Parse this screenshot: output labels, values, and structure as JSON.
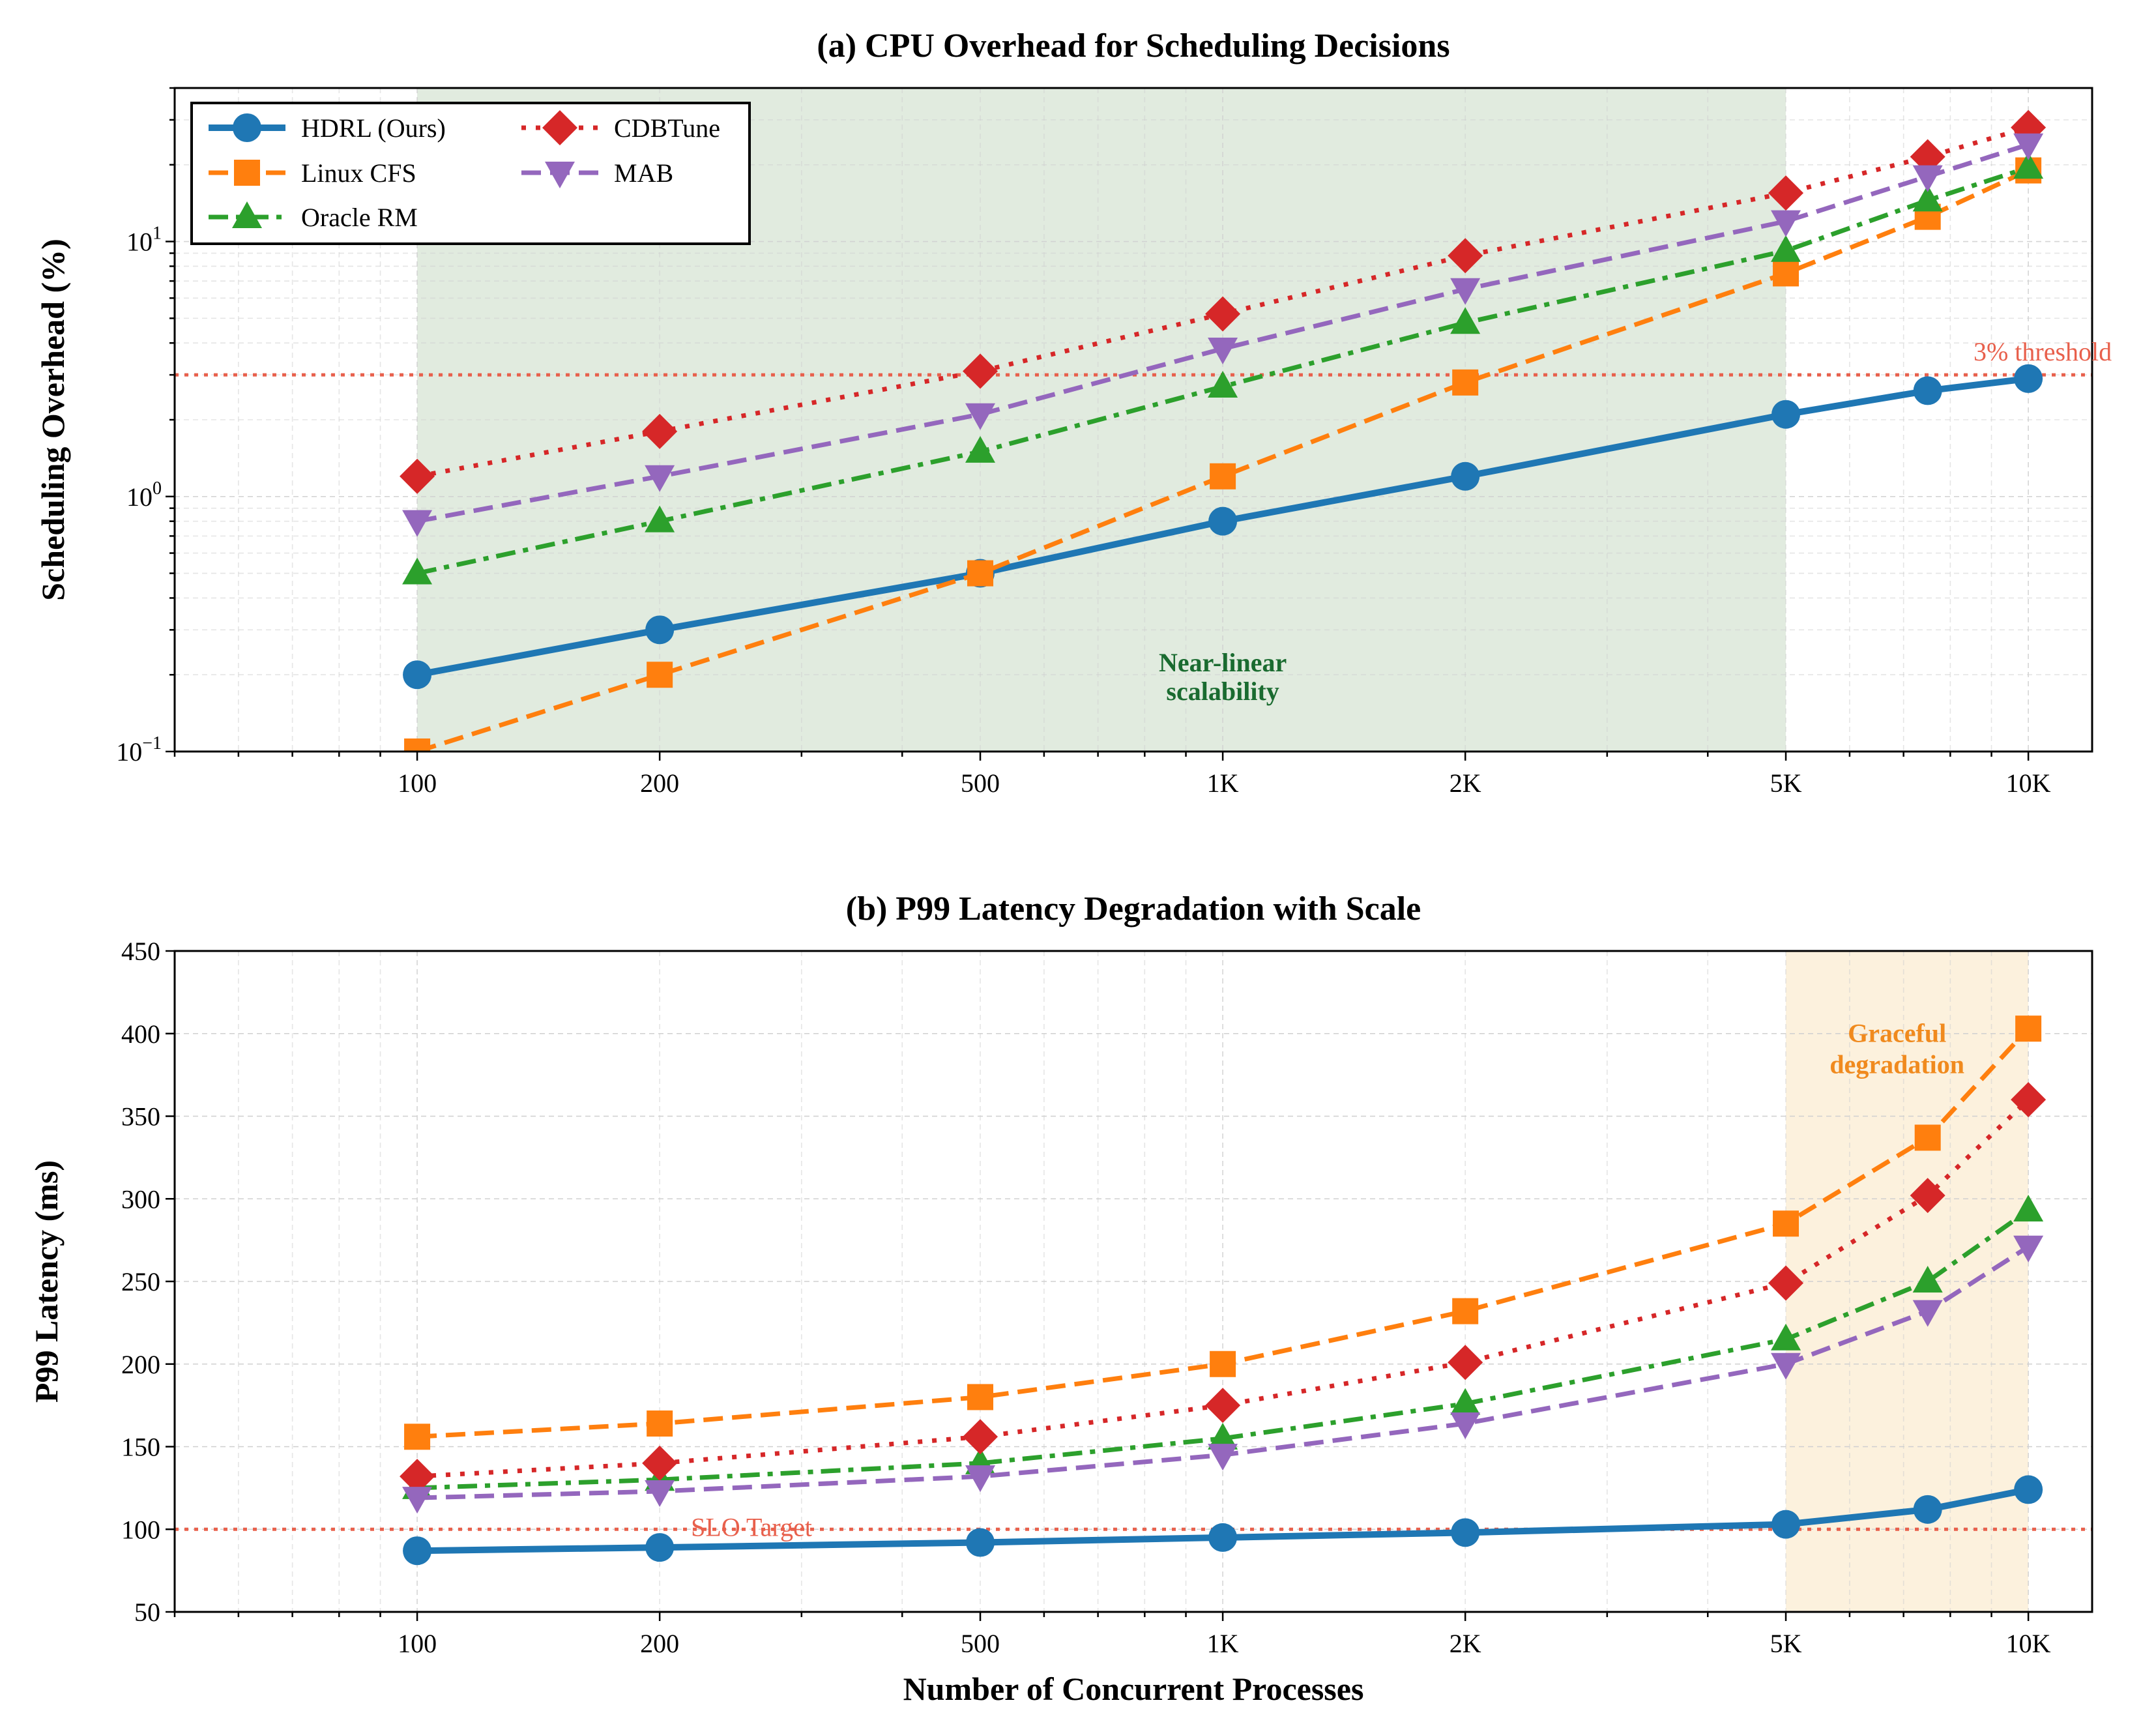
{
  "chart_data": [
    {
      "type": "line",
      "title": "(a) CPU Overhead for Scheduling Decisions",
      "xlabel": "",
      "ylabel": "Scheduling Overhead (%)",
      "xscale": "log",
      "yscale": "log",
      "xlim": [
        50,
        12000
      ],
      "ylim": [
        0.1,
        40
      ],
      "x": [
        100,
        200,
        500,
        1000,
        2000,
        5000,
        7500,
        10000
      ],
      "xticks": [
        100,
        200,
        500,
        1000,
        2000,
        5000,
        10000
      ],
      "xtick_labels": [
        "100",
        "200",
        "500",
        "1K",
        "2K",
        "5K",
        "10K"
      ],
      "yticks": [
        0.1,
        1,
        10
      ],
      "ytick_bases": [
        "10",
        "10",
        "10"
      ],
      "ytick_exps": [
        "−1",
        "0",
        "1"
      ],
      "grid": true,
      "legend_position": "top-left",
      "series": [
        {
          "name": "HDRL (Ours)",
          "color": "#1f77b4",
          "marker": "circle",
          "dash": "solid",
          "values": [
            0.2,
            0.3,
            0.5,
            0.8,
            1.2,
            2.1,
            2.6,
            2.9
          ]
        },
        {
          "name": "Linux CFS",
          "color": "#ff7f0e",
          "marker": "square",
          "dash": "dashed",
          "values": [
            0.1,
            0.2,
            0.5,
            1.2,
            2.8,
            7.5,
            12.5,
            19.0
          ]
        },
        {
          "name": "Oracle RM",
          "color": "#2ca02c",
          "marker": "triangle-up",
          "dash": "dashdot",
          "values": [
            0.5,
            0.8,
            1.5,
            2.7,
            4.8,
            9.2,
            14.5,
            19.5
          ]
        },
        {
          "name": "CDBTune",
          "color": "#d62728",
          "marker": "diamond",
          "dash": "dotted",
          "values": [
            1.2,
            1.8,
            3.1,
            5.2,
            8.8,
            15.5,
            21.5,
            28.0
          ]
        },
        {
          "name": "MAB",
          "color": "#9467bd",
          "marker": "triangle-down",
          "dash": "dashed",
          "values": [
            0.8,
            1.2,
            2.1,
            3.8,
            6.5,
            12.0,
            18.0,
            24.0
          ]
        }
      ],
      "threshold": {
        "value": 3,
        "label": "3% threshold",
        "color": "#e8604c"
      },
      "shaded_region": {
        "x_from": 100,
        "x_to": 5000,
        "color": "#d7e4d4",
        "label_lines": [
          "Near-linear",
          "scalability"
        ],
        "label_color": "#1a6b30"
      }
    },
    {
      "type": "line",
      "title": "(b) P99 Latency Degradation with Scale",
      "xlabel": "Number of Concurrent Processes",
      "ylabel": "P99 Latency (ms)",
      "xscale": "log",
      "yscale": "linear",
      "xlim": [
        50,
        12000
      ],
      "ylim": [
        50,
        450
      ],
      "x": [
        100,
        200,
        500,
        1000,
        2000,
        5000,
        7500,
        10000
      ],
      "xticks": [
        100,
        200,
        500,
        1000,
        2000,
        5000,
        10000
      ],
      "xtick_labels": [
        "100",
        "200",
        "500",
        "1K",
        "2K",
        "5K",
        "10K"
      ],
      "yticks": [
        50,
        100,
        150,
        200,
        250,
        300,
        350,
        400,
        450
      ],
      "ytick_labels": [
        "50",
        "100",
        "150",
        "200",
        "250",
        "300",
        "350",
        "400",
        "450"
      ],
      "grid": true,
      "series": [
        {
          "name": "HDRL (Ours)",
          "color": "#1f77b4",
          "marker": "circle",
          "dash": "solid",
          "values": [
            87,
            89,
            92,
            95,
            98,
            103,
            112,
            124
          ]
        },
        {
          "name": "Linux CFS",
          "color": "#ff7f0e",
          "marker": "square",
          "dash": "dashed",
          "values": [
            156,
            164,
            180,
            200,
            232,
            285,
            337,
            403
          ]
        },
        {
          "name": "Oracle RM",
          "color": "#2ca02c",
          "marker": "triangle-up",
          "dash": "dashdot",
          "values": [
            125,
            130,
            140,
            155,
            176,
            215,
            250,
            293
          ]
        },
        {
          "name": "CDBTune",
          "color": "#d62728",
          "marker": "diamond",
          "dash": "dotted",
          "values": [
            132,
            140,
            156,
            175,
            201,
            249,
            302,
            360
          ]
        },
        {
          "name": "MAB",
          "color": "#9467bd",
          "marker": "triangle-down",
          "dash": "dashed",
          "values": [
            119,
            123,
            132,
            145,
            164,
            200,
            232,
            271
          ]
        }
      ],
      "threshold": {
        "value": 100,
        "label": "SLO Target",
        "color": "#e8604c"
      },
      "shaded_region": {
        "x_from": 5000,
        "x_to": 10000,
        "color": "#fbecd2",
        "label_lines": [
          "Graceful",
          "degradation"
        ],
        "label_color": "#f08a1e"
      }
    }
  ]
}
